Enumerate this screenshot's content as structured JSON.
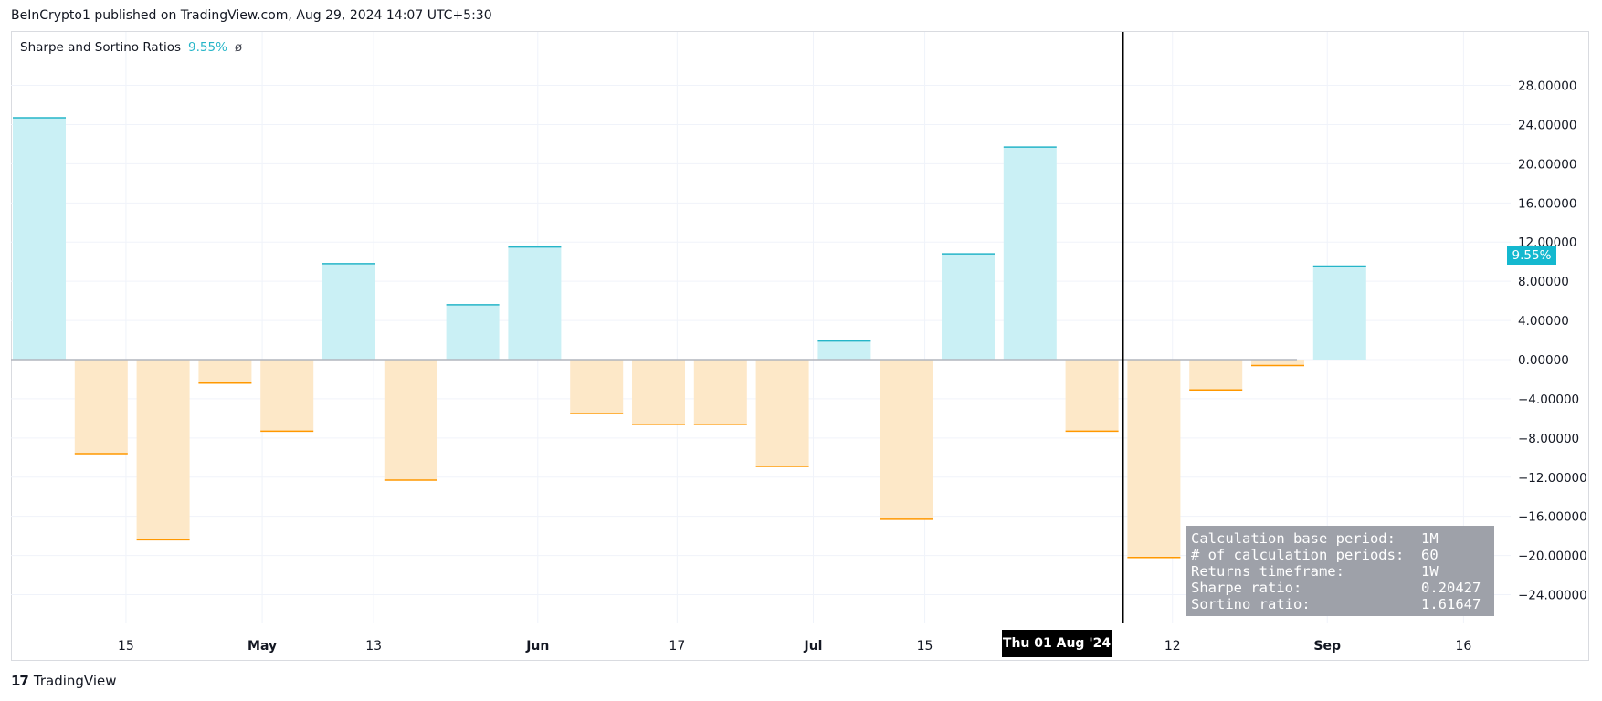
{
  "header": {
    "text": "BeInCrypto1 published on TradingView.com, Aug 29, 2024 14:07 UTC+5:30"
  },
  "legend": {
    "title": "Sharpe and Sortino Ratios",
    "value": "9.55%",
    "symbol": "ø"
  },
  "price_badge": "9.55%",
  "crosshair_label": "Thu 01 Aug '24",
  "footer": {
    "logo": "17",
    "brand": "TradingView"
  },
  "stats": [
    {
      "label": "Calculation base period:",
      "value": "1M"
    },
    {
      "label": "# of calculation periods:",
      "value": "60"
    },
    {
      "label": "Returns timeframe:",
      "value": "1W"
    },
    {
      "label": "Sharpe ratio:",
      "value": "0.20427"
    },
    {
      "label": "Sortino ratio:",
      "value": "1.61647"
    }
  ],
  "colors": {
    "positive_fill": "#caf0f5",
    "positive_line": "#26b5c8",
    "negative_fill": "#fde8c8",
    "negative_line": "#ff9800",
    "crosshair": "#000000"
  },
  "chart_data": {
    "type": "bar",
    "title": "Sharpe and Sortino Ratios",
    "ylim": [
      -26,
      30
    ],
    "y_ticks": [
      28,
      24,
      20,
      16,
      12,
      8,
      4,
      0,
      -4,
      -8,
      -12,
      -16,
      -20,
      -24
    ],
    "y_tick_labels": [
      "28.00000",
      "24.00000",
      "20.00000",
      "16.00000",
      "12.00000",
      "8.00000",
      "4.00000",
      "0.00000",
      "−4.00000",
      "−8.00000",
      "−12.00000",
      "−16.00000",
      "−20.00000",
      "−24.00000"
    ],
    "x_tick_labels": [
      {
        "label": "15",
        "bold": false,
        "bar_index": 1.4
      },
      {
        "label": "May",
        "bold": true,
        "bar_index": 3.6
      },
      {
        "label": "13",
        "bold": false,
        "bar_index": 5.4
      },
      {
        "label": "Jun",
        "bold": true,
        "bar_index": 8.05
      },
      {
        "label": "17",
        "bold": false,
        "bar_index": 10.3
      },
      {
        "label": "Jul",
        "bold": true,
        "bar_index": 12.5
      },
      {
        "label": "15",
        "bold": false,
        "bar_index": 14.3
      },
      {
        "label": "12",
        "bold": false,
        "bar_index": 18.3
      },
      {
        "label": "Sep",
        "bold": true,
        "bar_index": 20.8
      },
      {
        "label": "16",
        "bold": false,
        "bar_index": 23.0
      }
    ],
    "series": [
      {
        "values": [
          24.7,
          -9.6,
          -18.4,
          -2.4,
          -7.3,
          9.8,
          -12.3,
          5.6,
          11.5,
          -5.5,
          -6.6,
          -6.6,
          -10.9,
          1.9,
          -16.3,
          10.8,
          21.7,
          -7.3,
          -20.2,
          -3.1,
          -0.6,
          9.55
        ]
      }
    ],
    "crosshair_bar_index": 17.5,
    "grid": true
  }
}
